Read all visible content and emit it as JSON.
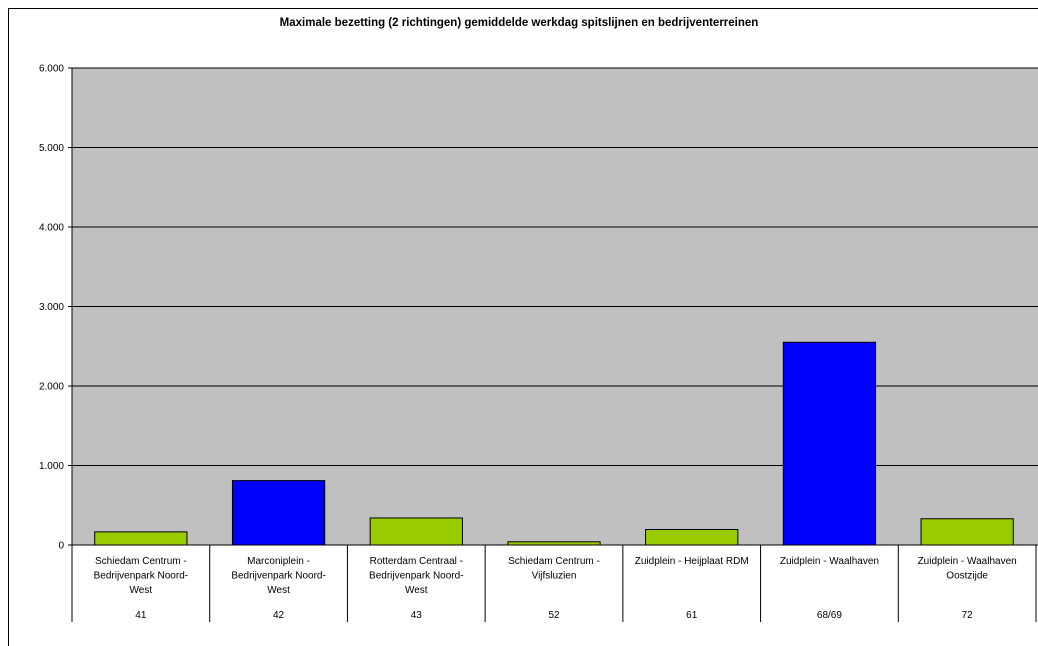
{
  "chart_data": {
    "type": "bar",
    "title": "Maximale bezetting (2 richtingen) gemiddelde werkdag spitslijnen en bedrijventerreinen",
    "xlabel": "",
    "ylabel": "",
    "ylim": [
      0,
      6000
    ],
    "yticks": [
      0,
      1000,
      2000,
      3000,
      4000,
      5000,
      6000
    ],
    "ytick_labels": [
      "0",
      "1.000",
      "2.000",
      "3.000",
      "4.000",
      "5.000",
      "6.000"
    ],
    "grid": true,
    "legend": false,
    "categories": [
      {
        "name_lines": [
          "Schiedam Centrum -",
          "Bedrijvenpark Noord-",
          "West"
        ],
        "line": "41"
      },
      {
        "name_lines": [
          "Marconiplein -",
          "Bedrijvenpark Noord-",
          "West"
        ],
        "line": "42"
      },
      {
        "name_lines": [
          "Rotterdam Centraal -",
          "Bedrijvenpark Noord-",
          "West"
        ],
        "line": "43"
      },
      {
        "name_lines": [
          "Schiedam Centrum -",
          "Vijfsluzien"
        ],
        "line": "52"
      },
      {
        "name_lines": [
          "Zuidplein - Heijplaat RDM"
        ],
        "line": "61"
      },
      {
        "name_lines": [
          "Zuidplein - Waalhaven"
        ],
        "line": "68/69"
      },
      {
        "name_lines": [
          "Zuidplein - Waalhaven",
          "Oostzijde"
        ],
        "line": "72"
      }
    ],
    "values": [
      165,
      810,
      340,
      40,
      195,
      2550,
      330
    ],
    "bar_colors": [
      "#99CC00",
      "#0000FF",
      "#99CC00",
      "#99CC00",
      "#99CC00",
      "#0000FF",
      "#99CC00"
    ],
    "colors": {
      "plot_background": "#C0C0C0",
      "gridline": "#000000",
      "green": "#99CC00",
      "blue": "#0000FF"
    }
  }
}
